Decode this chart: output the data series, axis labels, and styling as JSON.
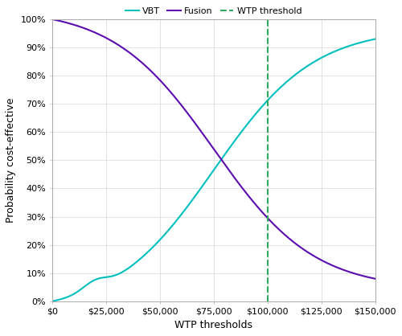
{
  "title": "",
  "xlabel": "WTP thresholds",
  "ylabel": "Probability cost-effective",
  "legend_labels": [
    "VBT",
    "Fusion",
    "WTP threshold"
  ],
  "vbt_color": "#00BFBF",
  "fusion_color": "#5B0DAF",
  "wtp_color": "#2EAA5E",
  "wtp_threshold": 100000,
  "xlim": [
    0,
    150000
  ],
  "ylim": [
    0,
    1
  ],
  "xticks": [
    0,
    25000,
    50000,
    75000,
    100000,
    125000,
    150000
  ],
  "yticks": [
    0.0,
    0.1,
    0.2,
    0.3,
    0.4,
    0.5,
    0.6,
    0.7,
    0.8,
    0.9,
    1.0
  ],
  "background_color": "#ffffff",
  "grid_color": "#d8d8d8",
  "vbt_midpoint": 75000,
  "vbt_steepness": 4.2e-05,
  "fusion_midpoint": 75000,
  "fusion_steepness": 4.2e-05
}
